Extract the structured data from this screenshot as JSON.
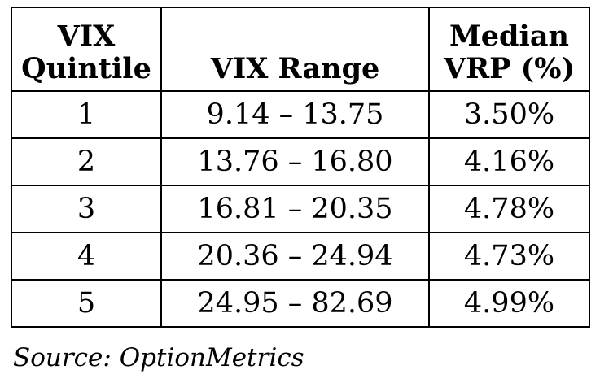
{
  "table": {
    "headers": [
      {
        "line1": "VIX",
        "line2": "Quintile"
      },
      {
        "line1": "",
        "line2": "VIX Range"
      },
      {
        "line1": "Median",
        "line2": "VRP (%)"
      }
    ],
    "rows": [
      {
        "quintile": "1",
        "range": "9.14 – 13.75",
        "median_vrp": "3.50%"
      },
      {
        "quintile": "2",
        "range": "13.76 – 16.80",
        "median_vrp": "4.16%"
      },
      {
        "quintile": "3",
        "range": "16.81 – 20.35",
        "median_vrp": "4.78%"
      },
      {
        "quintile": "4",
        "range": "20.36 – 24.94",
        "median_vrp": "4.73%"
      },
      {
        "quintile": "5",
        "range": "24.95 – 82.69",
        "median_vrp": "4.99%"
      }
    ]
  },
  "source_note": "Source: OptionMetrics"
}
